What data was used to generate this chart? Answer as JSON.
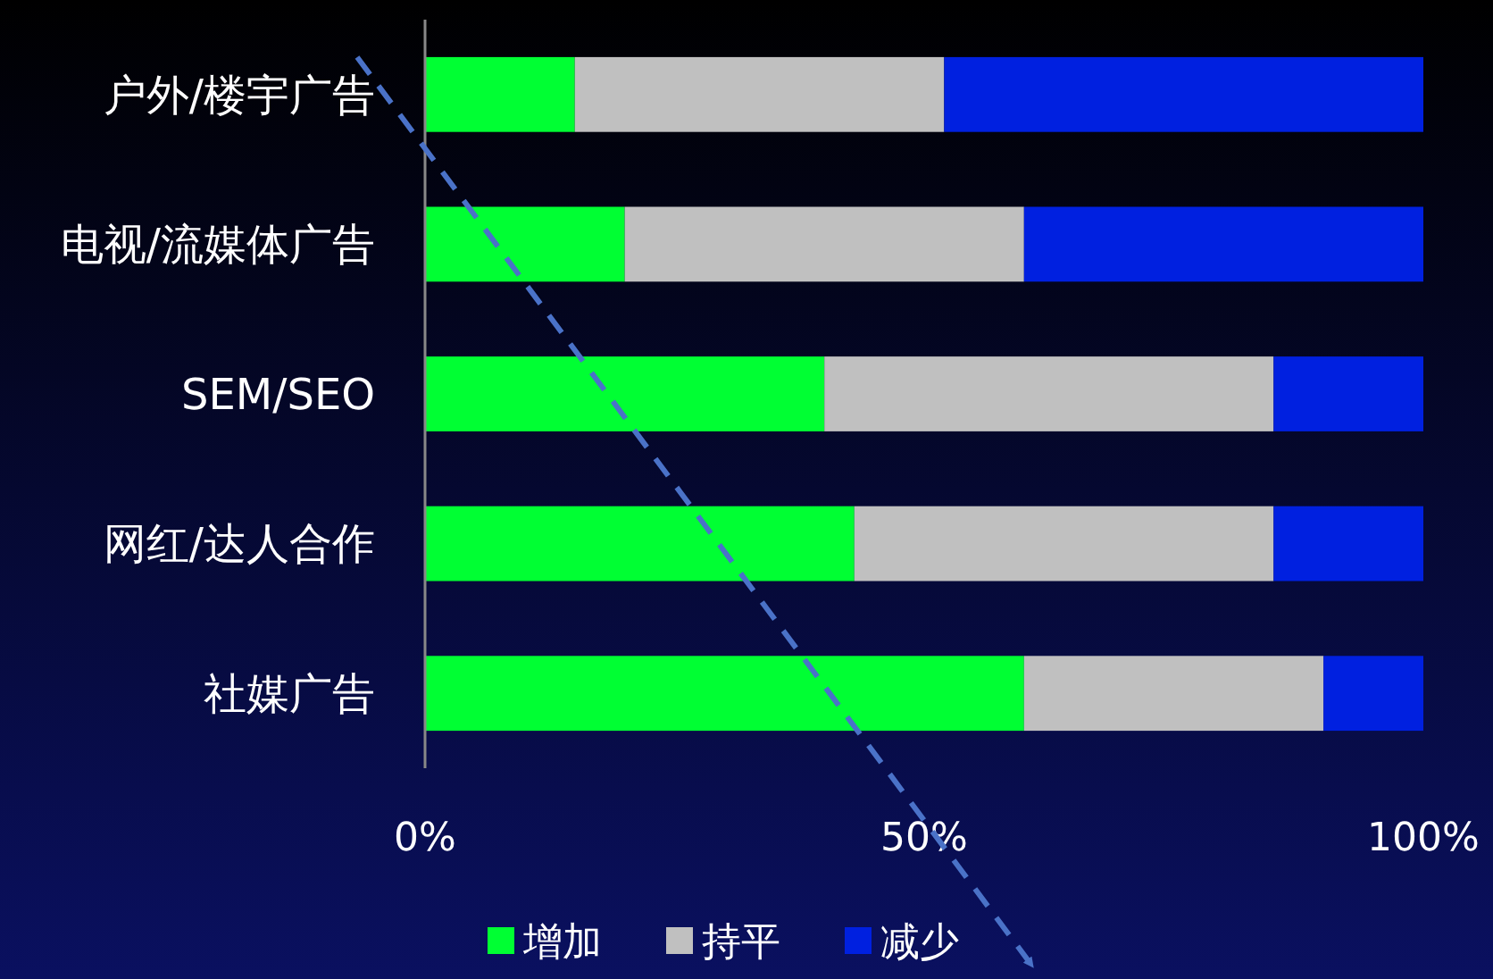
{
  "chart_data": {
    "type": "bar",
    "orientation": "horizontal",
    "stacked": true,
    "categories": [
      "户外/楼宇广告",
      "电视/流媒体广告",
      "SEM/SEO",
      "网红/达人合作",
      "社媒广告"
    ],
    "series": [
      {
        "name": "增加",
        "color": "#00ff33",
        "values": [
          15,
          20,
          40,
          43,
          60
        ]
      },
      {
        "name": "持平",
        "color": "#c0c0c0",
        "values": [
          37,
          40,
          45,
          42,
          30
        ]
      },
      {
        "name": "减少",
        "color": "#0020e0",
        "values": [
          48,
          40,
          15,
          15,
          10
        ]
      }
    ],
    "xlim": [
      0,
      100
    ],
    "xticks": [
      {
        "value": 0,
        "label": "0%"
      },
      {
        "value": 50,
        "label": "50%"
      },
      {
        "value": 100,
        "label": "100%"
      }
    ],
    "grid": false,
    "legend": "bottom"
  }
}
